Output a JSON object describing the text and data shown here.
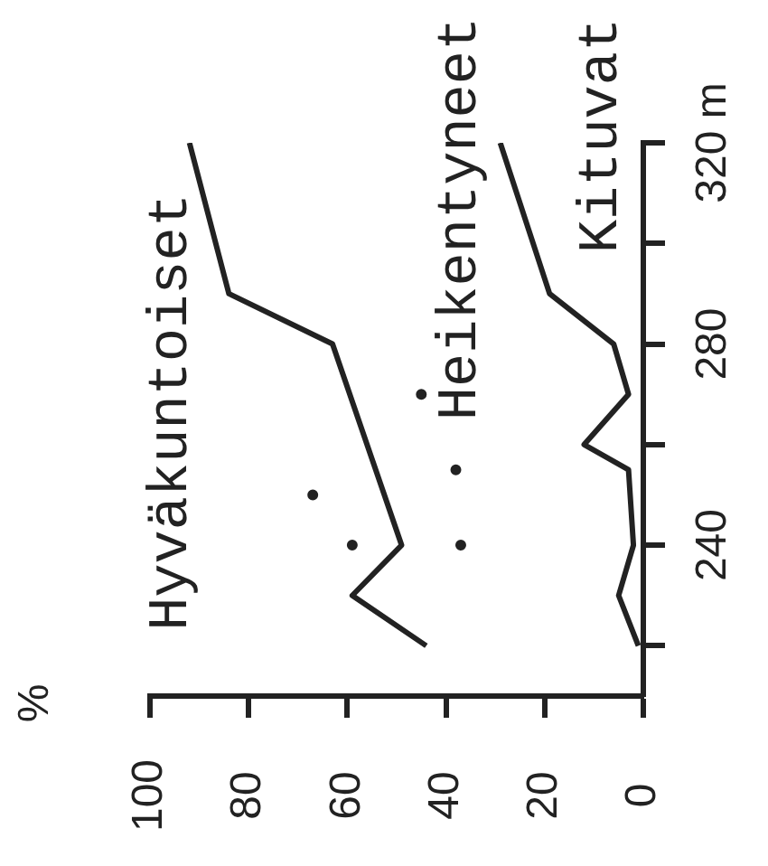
{
  "chart_data": {
    "type": "line",
    "annotations": [
      "%"
    ],
    "xlim": [
      100,
      0
    ],
    "xticks": [
      100,
      80,
      60,
      40,
      20,
      0
    ],
    "ylim": [
      210,
      320
    ],
    "yticks": [
      {
        "value": 220,
        "label": null
      },
      240,
      {
        "value": 260,
        "label": null
      },
      280,
      {
        "value": 300,
        "label": null
      },
      {
        "value": 320,
        "label": "320 m"
      }
    ],
    "grid": false,
    "legend": false,
    "line_style": "solid",
    "series": [
      {
        "name": "Hyväkuntoiset",
        "color": "#222222",
        "x": [
          44,
          59,
          49,
          63,
          84,
          92
        ],
        "values": [
          220,
          230,
          240,
          280,
          290,
          320
        ]
      },
      {
        "name": "Heikentyneet",
        "type": "scatter",
        "marker": "circle",
        "color": "#222222",
        "x": [
          59,
          67,
          37,
          38,
          45
        ],
        "values": [
          240,
          250,
          240,
          255,
          270
        ]
      },
      {
        "name": "Kituvat",
        "color": "#222222",
        "x": [
          1,
          5,
          2,
          3,
          12,
          3,
          6,
          19,
          29
        ],
        "values": [
          220,
          230,
          240,
          255,
          260,
          270,
          280,
          290,
          320
        ]
      }
    ]
  }
}
